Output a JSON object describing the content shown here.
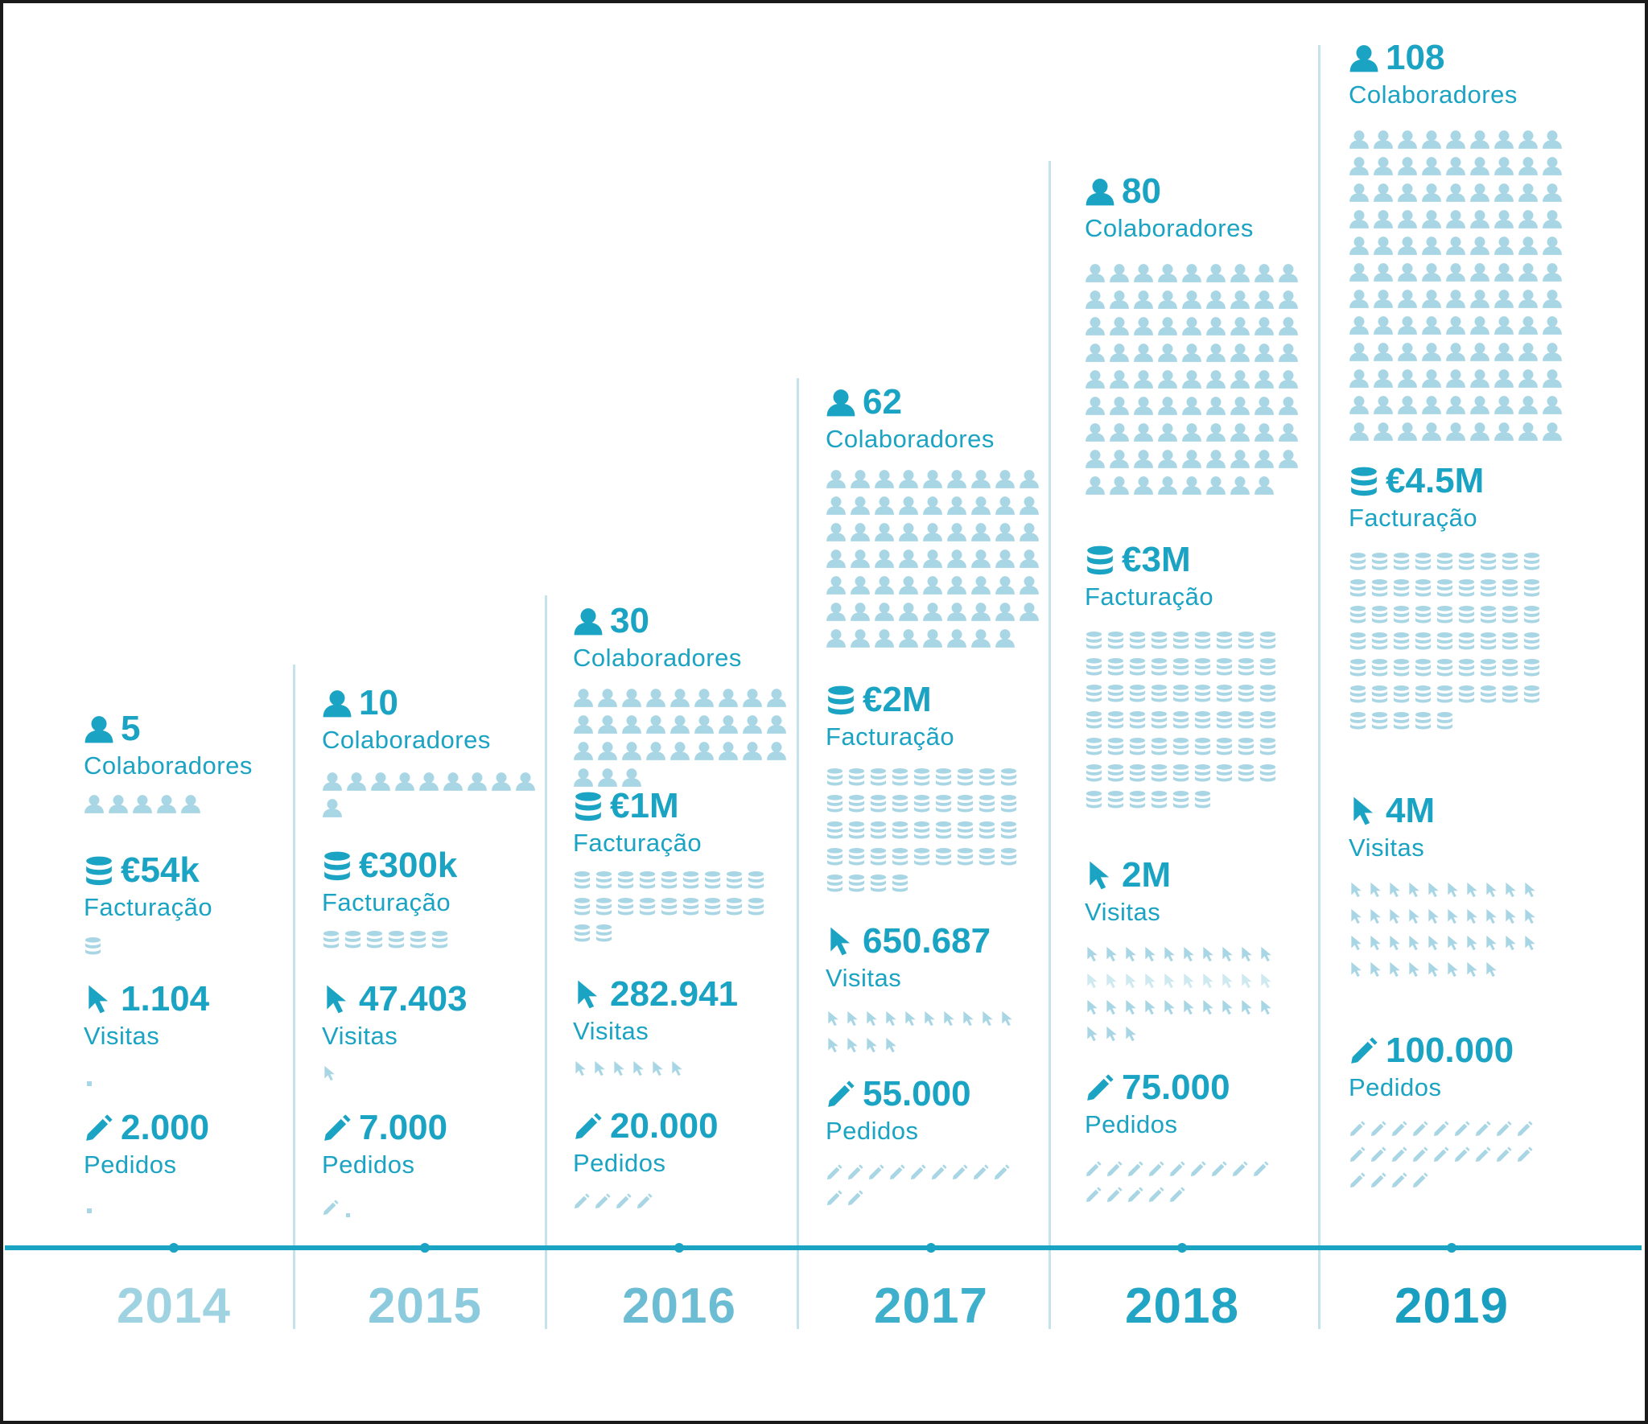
{
  "colors": {
    "accent": "#1aa3c3",
    "icon_light": "#a9d6e4",
    "icon_faint": "#cfe9f1",
    "year_2014": "#9fd3e2",
    "year_2015": "#8ccbdd",
    "year_2016": "#6cbdd4",
    "year_2017": "#3fb0cb",
    "year_2018": "#22a5c4",
    "year_2019": "#1a9fc0",
    "divider": "#c5e3ec",
    "frame": "#1a1a1a"
  },
  "icons": {
    "colaboradores": "person-icon",
    "facturacao": "coin-stack-icon",
    "visitas": "cursor-icon",
    "pedidos": "pencil-icon"
  },
  "years": [
    {
      "year": "2014",
      "metrics": [
        {
          "key": "colaboradores",
          "icon": "person-icon",
          "value": "5",
          "label": "Colaboradores",
          "count": 5
        },
        {
          "key": "facturacao",
          "icon": "coin-stack-icon",
          "value": "€54k",
          "label": "Facturação",
          "count": 1
        },
        {
          "key": "visitas",
          "icon": "cursor-icon",
          "value": "1.104",
          "label": "Visitas",
          "count": 0
        },
        {
          "key": "pedidos",
          "icon": "pencil-icon",
          "value": "2.000",
          "label": "Pedidos",
          "count": 0
        }
      ]
    },
    {
      "year": "2015",
      "metrics": [
        {
          "key": "colaboradores",
          "icon": "person-icon",
          "value": "10",
          "label": "Colaboradores",
          "count": 10
        },
        {
          "key": "facturacao",
          "icon": "coin-stack-icon",
          "value": "€300k",
          "label": "Facturação",
          "count": 6
        },
        {
          "key": "visitas",
          "icon": "cursor-icon",
          "value": "47.403",
          "label": "Visitas",
          "count": 1
        },
        {
          "key": "pedidos",
          "icon": "pencil-icon",
          "value": "7.000",
          "label": "Pedidos",
          "count": 1
        }
      ]
    },
    {
      "year": "2016",
      "metrics": [
        {
          "key": "colaboradores",
          "icon": "person-icon",
          "value": "30",
          "label": "Colaboradores",
          "count": 30
        },
        {
          "key": "facturacao",
          "icon": "coin-stack-icon",
          "value": "€1M",
          "label": "Facturação",
          "count": 20
        },
        {
          "key": "visitas",
          "icon": "cursor-icon",
          "value": "282.941",
          "label": "Visitas",
          "count": 6
        },
        {
          "key": "pedidos",
          "icon": "pencil-icon",
          "value": "20.000",
          "label": "Pedidos",
          "count": 4
        }
      ]
    },
    {
      "year": "2017",
      "metrics": [
        {
          "key": "colaboradores",
          "icon": "person-icon",
          "value": "62",
          "label": "Colaboradores",
          "count": 62
        },
        {
          "key": "facturacao",
          "icon": "coin-stack-icon",
          "value": "€2M",
          "label": "Facturação",
          "count": 40
        },
        {
          "key": "visitas",
          "icon": "cursor-icon",
          "value": "650.687",
          "label": "Visitas",
          "count": 14
        },
        {
          "key": "pedidos",
          "icon": "pencil-icon",
          "value": "55.000",
          "label": "Pedidos",
          "count": 11
        }
      ]
    },
    {
      "year": "2018",
      "metrics": [
        {
          "key": "colaboradores",
          "icon": "person-icon",
          "value": "80",
          "label": "Colaboradores",
          "count": 80
        },
        {
          "key": "facturacao",
          "icon": "coin-stack-icon",
          "value": "€3M",
          "label": "Facturação",
          "count": 60
        },
        {
          "key": "visitas",
          "icon": "cursor-icon",
          "value": "2M",
          "label": "Visitas",
          "count": 33
        },
        {
          "key": "pedidos",
          "icon": "pencil-icon",
          "value": "75.000",
          "label": "Pedidos",
          "count": 14
        }
      ]
    },
    {
      "year": "2019",
      "metrics": [
        {
          "key": "colaboradores",
          "icon": "person-icon",
          "value": "108",
          "label": "Colaboradores",
          "count": 108
        },
        {
          "key": "facturacao",
          "icon": "coin-stack-icon",
          "value": "€4.5M",
          "label": "Facturação",
          "count": 59
        },
        {
          "key": "visitas",
          "icon": "cursor-icon",
          "value": "4M",
          "label": "Visitas",
          "count": 38
        },
        {
          "key": "pedidos",
          "icon": "pencil-icon",
          "value": "100.000",
          "label": "Pedidos",
          "count": 22
        }
      ]
    }
  ]
}
